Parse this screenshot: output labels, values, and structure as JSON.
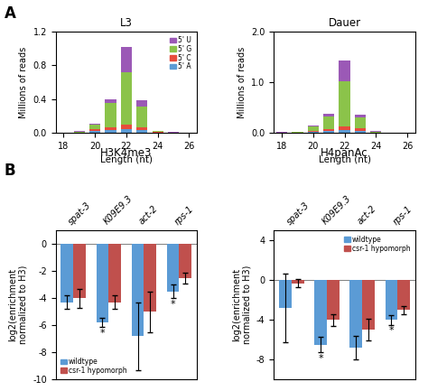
{
  "chart_data": [
    {
      "type": "bar",
      "stacked": true,
      "title": "L3",
      "x_label": "Length (nt)",
      "y_label": "Millions of reads",
      "categories": [
        "18",
        null,
        "20",
        null,
        "22",
        null,
        "24",
        null,
        "26"
      ],
      "series": [
        {
          "name": "5' A",
          "color": "#5b9bd5",
          "values": [
            0.001,
            0.003,
            0.02,
            0.03,
            0.04,
            0.03,
            0.004,
            0.001,
            0.001
          ]
        },
        {
          "name": "5' C",
          "color": "#e74c3c",
          "values": [
            0.001,
            0.004,
            0.02,
            0.04,
            0.06,
            0.04,
            0.005,
            0.002,
            0.001
          ]
        },
        {
          "name": "5' G",
          "color": "#8bc34a",
          "values": [
            0.002,
            0.008,
            0.06,
            0.28,
            0.62,
            0.24,
            0.012,
            0.003,
            0.001
          ]
        },
        {
          "name": "5' U",
          "color": "#9b59b6",
          "values": [
            0.003,
            0.005,
            0.01,
            0.05,
            0.3,
            0.08,
            0.005,
            0.002,
            0.001
          ]
        }
      ],
      "ylim": [
        0,
        1.2
      ],
      "yticks": [
        {
          "value": 0,
          "label": "0.0"
        },
        0.4,
        0.8,
        1.2
      ],
      "legend": "upper right",
      "annotations": [
        {
          "text": "A"
        }
      ]
    },
    {
      "type": "bar",
      "stacked": true,
      "title": "Dauer",
      "x_label": "Length (nt)",
      "y_label": "Millions of reads",
      "categories": [
        "18",
        null,
        "20",
        null,
        "22",
        null,
        "24",
        null,
        "26"
      ],
      "series": [
        {
          "name": "5' A",
          "color": "#5b9bd5",
          "values": [
            0.003,
            0.005,
            0.02,
            0.04,
            0.05,
            0.04,
            0.005,
            0.002,
            0.001
          ]
        },
        {
          "name": "5' C",
          "color": "#e74c3c",
          "values": [
            0.003,
            0.005,
            0.02,
            0.04,
            0.07,
            0.05,
            0.006,
            0.002,
            0.001
          ]
        },
        {
          "name": "5' G",
          "color": "#8bc34a",
          "values": [
            0.005,
            0.01,
            0.08,
            0.25,
            0.9,
            0.22,
            0.012,
            0.003,
            0.001
          ]
        },
        {
          "name": "5' U",
          "color": "#9b59b6",
          "values": [
            0.005,
            0.01,
            0.03,
            0.05,
            0.4,
            0.05,
            0.01,
            0.003,
            0.001
          ]
        }
      ],
      "ylim": [
        0,
        2.0
      ],
      "yticks": [
        {
          "value": 0,
          "label": "0.0"
        },
        {
          "value": 1,
          "label": "1.0"
        },
        {
          "value": 2,
          "label": "2.0"
        }
      ]
    },
    {
      "type": "bar",
      "title": "H3K4me3",
      "y_label": "log2(enrichment\nnormalized to H3)",
      "categories": [
        "spat-3",
        "K09E9.3",
        "act-2",
        "rps-1"
      ],
      "series": [
        {
          "name": "wildtype",
          "color": "#5b9bd5",
          "values": [
            -4.3,
            -5.8,
            -6.8,
            -3.5
          ],
          "errors": [
            0.5,
            0.35,
            2.5,
            0.5
          ]
        },
        {
          "name": "csr-1 hypomorph",
          "color": "#c0504d",
          "values": [
            -4.0,
            -4.3,
            -5.0,
            -2.5
          ],
          "errors": [
            0.7,
            0.5,
            1.5,
            0.4
          ]
        }
      ],
      "ylim": [
        -10,
        1
      ],
      "yticks": [
        -10,
        -8,
        -6,
        -4,
        -2,
        0
      ],
      "legend": "lower left",
      "annotations": [
        {
          "text": "B"
        },
        {
          "text": "*",
          "category": "K09E9.3",
          "series": "wildtype"
        },
        {
          "text": "*",
          "category": "rps-1",
          "series": "wildtype"
        }
      ]
    },
    {
      "type": "bar",
      "title": "H4panAc",
      "y_label": "log2(enrichment\nnormalized to H3)",
      "categories": [
        "spat-3",
        "K09E9.3",
        "act-2",
        "rps-1"
      ],
      "series": [
        {
          "name": "wildtype",
          "color": "#5b9bd5",
          "values": [
            -2.8,
            -6.5,
            -6.8,
            -4.0
          ],
          "errors": [
            3.5,
            0.8,
            1.2,
            0.5
          ]
        },
        {
          "name": "csr-1 hypomorph",
          "color": "#c0504d",
          "values": [
            -0.3,
            -4.0,
            -5.0,
            -3.0
          ],
          "errors": [
            0.4,
            0.6,
            1.1,
            0.4
          ]
        }
      ],
      "ylim": [
        -10,
        5
      ],
      "yticks": [
        -8,
        -4,
        0,
        4
      ],
      "legend": "upper right",
      "annotations": [
        {
          "text": "*",
          "category": "K09E9.3",
          "series": "wildtype"
        },
        {
          "text": "*",
          "category": "rps-1",
          "series": "wildtype"
        }
      ]
    }
  ]
}
